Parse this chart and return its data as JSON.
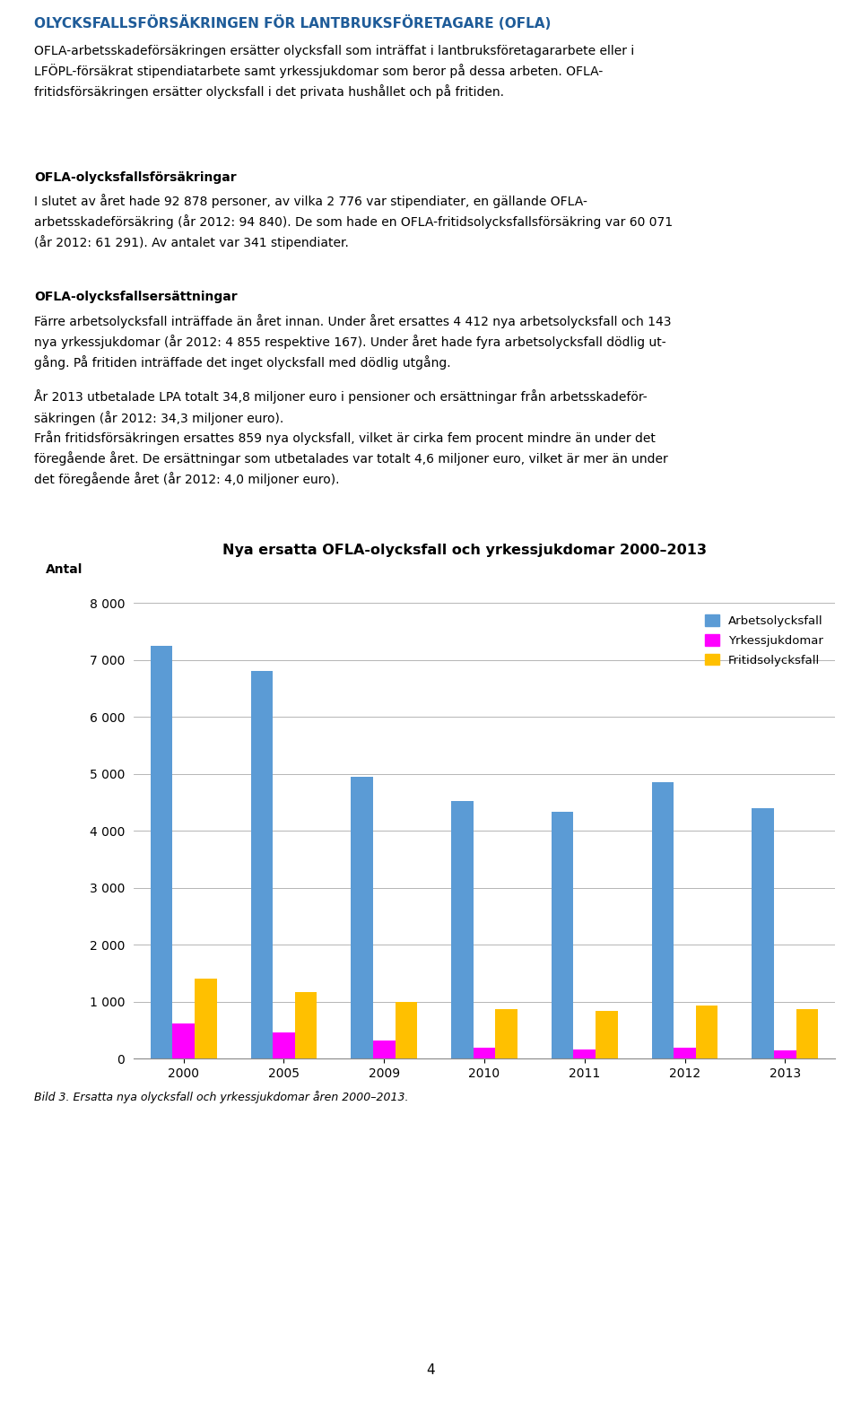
{
  "title": "Nya ersatta OFLA-olycksfall och yrkessjukdomar 2000–2013",
  "ylabel": "Antal",
  "caption": "Bild 3. Ersatta nya olycksfall och yrkessjukdomar åren 2000–2013.",
  "page_number": "4",
  "header_title": "OLYCKSFALLSFÖRSÄKRINGEN FÖR LANTBRUKSFÖRETAGARE (OFLA)",
  "header_title_color": "#1F5C99",
  "categories": [
    "2000",
    "2005",
    "2009",
    "2010",
    "2011",
    "2012",
    "2013"
  ],
  "arbetsolycksfall": [
    7250,
    6800,
    4950,
    4520,
    4330,
    4850,
    4400
  ],
  "yrkessjukdomar": [
    610,
    460,
    310,
    190,
    160,
    185,
    145
  ],
  "fritidsolycksfall": [
    1400,
    1170,
    990,
    860,
    840,
    930,
    860
  ],
  "bar_color_arbetsolycksfall": "#5B9BD5",
  "bar_color_yrkessjukdomar": "#FF00FF",
  "bar_color_fritidsolycksfall": "#FFC000",
  "legend_labels": [
    "Arbetsolycksfall",
    "Yrkessjukdomar",
    "Fritidsolycksfall"
  ],
  "ylim": [
    0,
    8000
  ],
  "yticks": [
    0,
    1000,
    2000,
    3000,
    4000,
    5000,
    6000,
    7000,
    8000
  ],
  "background_color": "#FFFFFF",
  "grid_color": "#AAAAAA",
  "bar_width": 0.22,
  "figwidth": 9.6,
  "figheight": 15.63
}
